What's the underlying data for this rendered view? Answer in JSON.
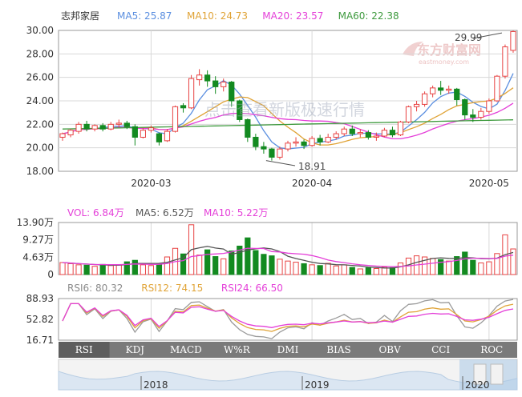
{
  "stock_name": "志邦家居",
  "logo_text": "东方财富网",
  "logo_url": "eastmoney.com",
  "watermark": "点击查看新版极速行情",
  "colors": {
    "up": "#e84343",
    "down": "#138a20",
    "ma5": "#5b8fe0",
    "ma10": "#e0a336",
    "ma20": "#e43fd8",
    "ma60": "#3e9a3e",
    "grid": "#d8d8d8",
    "axis": "#999",
    "tabbar": "#7a7a7a",
    "slider": "#a9c8e6"
  },
  "ma_legend": [
    {
      "label": "MA5: 25.87",
      "color": "#5b8fe0"
    },
    {
      "label": "MA10: 24.73",
      "color": "#e0a336"
    },
    {
      "label": "MA20: 23.57",
      "color": "#e43fd8"
    },
    {
      "label": "MA60: 22.38",
      "color": "#3e9a3e"
    }
  ],
  "vol_legend": [
    {
      "label": "VOL: 6.84万",
      "color": "#e43fd8"
    },
    {
      "label": "MA5: 6.52万",
      "color": "#555555"
    },
    {
      "label": "MA10: 5.22万",
      "color": "#e43fd8"
    }
  ],
  "rsi_legend": [
    {
      "label": "RSI6: 80.32",
      "color": "#8a8a8a"
    },
    {
      "label": "RSI12: 74.15",
      "color": "#e0a336"
    },
    {
      "label": "RSI24: 66.50",
      "color": "#e43fd8"
    }
  ],
  "tabs": [
    "RSI",
    "KDJ",
    "MACD",
    "W%R",
    "DMI",
    "BIAS",
    "OBV",
    "CCI",
    "ROC"
  ],
  "active_tab": "RSI",
  "nav_labels": [
    "2018",
    "2019",
    "2020"
  ],
  "chart_data": {
    "type": "candlestick",
    "ylim": [
      18.0,
      30.0
    ],
    "yticks": [
      "30.00",
      "28.00",
      "26.00",
      "24.00",
      "22.00",
      "20.00",
      "18.00"
    ],
    "xticks": [
      "2020-03",
      "2020-04",
      "2020-05"
    ],
    "xtick_index": [
      11,
      31,
      53
    ],
    "annotations": [
      {
        "text": "29.99",
        "index": 55,
        "value": 29.99
      },
      {
        "text": "18.91",
        "index": 25,
        "value": 18.91
      }
    ],
    "candles": [
      [
        20.9,
        21.2,
        20.6,
        21.3
      ],
      [
        21.1,
        21.5,
        20.9,
        21.6
      ],
      [
        21.4,
        22.0,
        21.2,
        22.2
      ],
      [
        22.0,
        21.6,
        21.4,
        22.3
      ],
      [
        21.6,
        21.9,
        21.4,
        22.0
      ],
      [
        21.9,
        21.6,
        21.4,
        22.1
      ],
      [
        21.6,
        22.0,
        21.5,
        22.2
      ],
      [
        22.0,
        22.1,
        21.7,
        22.4
      ],
      [
        22.1,
        21.8,
        21.6,
        22.3
      ],
      [
        21.8,
        20.9,
        20.2,
        22.0
      ],
      [
        20.9,
        21.5,
        20.8,
        21.7
      ],
      [
        21.5,
        21.7,
        21.3,
        21.9
      ],
      [
        21.2,
        20.5,
        20.2,
        21.3
      ],
      [
        20.6,
        21.4,
        20.5,
        21.6
      ],
      [
        21.4,
        23.5,
        21.3,
        23.6
      ],
      [
        23.6,
        23.4,
        23.0,
        23.8
      ],
      [
        23.4,
        25.9,
        23.3,
        26.2
      ],
      [
        25.8,
        26.2,
        25.3,
        26.7
      ],
      [
        26.2,
        25.7,
        25.2,
        26.6
      ],
      [
        25.7,
        25.2,
        24.6,
        26.1
      ],
      [
        25.2,
        25.6,
        24.8,
        25.9
      ],
      [
        25.6,
        24.0,
        23.5,
        25.7
      ],
      [
        24.0,
        22.4,
        22.2,
        24.1
      ],
      [
        22.4,
        20.9,
        20.5,
        22.5
      ],
      [
        20.9,
        20.1,
        19.8,
        21.2
      ],
      [
        20.1,
        19.9,
        19.5,
        20.5
      ],
      [
        19.9,
        19.2,
        18.91,
        20.0
      ],
      [
        19.2,
        19.9,
        19.0,
        20.1
      ],
      [
        19.9,
        20.4,
        19.7,
        20.6
      ],
      [
        20.4,
        20.5,
        20.1,
        20.9
      ],
      [
        20.5,
        20.2,
        19.9,
        20.7
      ],
      [
        20.2,
        20.8,
        20.1,
        21.0
      ],
      [
        20.8,
        20.5,
        20.2,
        21.1
      ],
      [
        20.5,
        20.9,
        20.4,
        21.2
      ],
      [
        20.9,
        21.2,
        20.7,
        21.4
      ],
      [
        21.2,
        21.6,
        21.0,
        21.8
      ],
      [
        21.6,
        21.2,
        21.0,
        21.9
      ],
      [
        21.2,
        21.3,
        20.9,
        21.6
      ],
      [
        21.3,
        20.9,
        20.7,
        21.5
      ],
      [
        20.9,
        21.0,
        20.6,
        21.3
      ],
      [
        21.0,
        21.5,
        20.9,
        21.7
      ],
      [
        21.5,
        21.1,
        20.9,
        21.8
      ],
      [
        21.1,
        22.2,
        21.0,
        22.3
      ],
      [
        22.2,
        23.5,
        22.1,
        23.6
      ],
      [
        23.5,
        23.7,
        23.1,
        24.0
      ],
      [
        23.7,
        24.6,
        23.5,
        24.8
      ],
      [
        24.6,
        25.1,
        24.3,
        25.3
      ],
      [
        25.1,
        24.9,
        24.5,
        25.7
      ],
      [
        24.9,
        25.0,
        24.6,
        25.3
      ],
      [
        25.0,
        24.1,
        23.6,
        25.1
      ],
      [
        24.1,
        22.8,
        22.4,
        24.2
      ],
      [
        22.8,
        22.6,
        22.2,
        23.3
      ],
      [
        22.6,
        23.1,
        22.4,
        23.4
      ],
      [
        23.1,
        24.0,
        22.9,
        24.2
      ],
      [
        24.0,
        26.1,
        23.9,
        26.2
      ],
      [
        26.1,
        28.6,
        25.9,
        28.8
      ],
      [
        28.3,
        29.9,
        28.1,
        29.99
      ]
    ],
    "volume": [
      3.2,
      2.9,
      2.6,
      2.5,
      2.2,
      2.7,
      2.4,
      2.6,
      3.4,
      3.8,
      2.6,
      2.4,
      2.8,
      4.7,
      7.0,
      5.5,
      13.3,
      5.2,
      6.6,
      4.8,
      4.2,
      6.3,
      7.6,
      9.8,
      6.4,
      5.4,
      5.0,
      4.1,
      3.6,
      3.3,
      2.9,
      2.6,
      2.4,
      3.0,
      2.3,
      2.6,
      1.9,
      1.5,
      1.8,
      1.6,
      2.0,
      1.8,
      3.1,
      4.4,
      5.0,
      4.7,
      4.3,
      4.0,
      3.6,
      4.8,
      6.0,
      3.8,
      3.1,
      3.4,
      5.6,
      10.6,
      6.84
    ],
    "vol_yticks": [
      "13.90万",
      "9.27万",
      "4.63万",
      "0"
    ],
    "vol_max": 13.9,
    "rsi_yticks": [
      "88.93",
      "52.82",
      "16.71"
    ],
    "rsi_range": [
      16.71,
      88.93
    ]
  }
}
